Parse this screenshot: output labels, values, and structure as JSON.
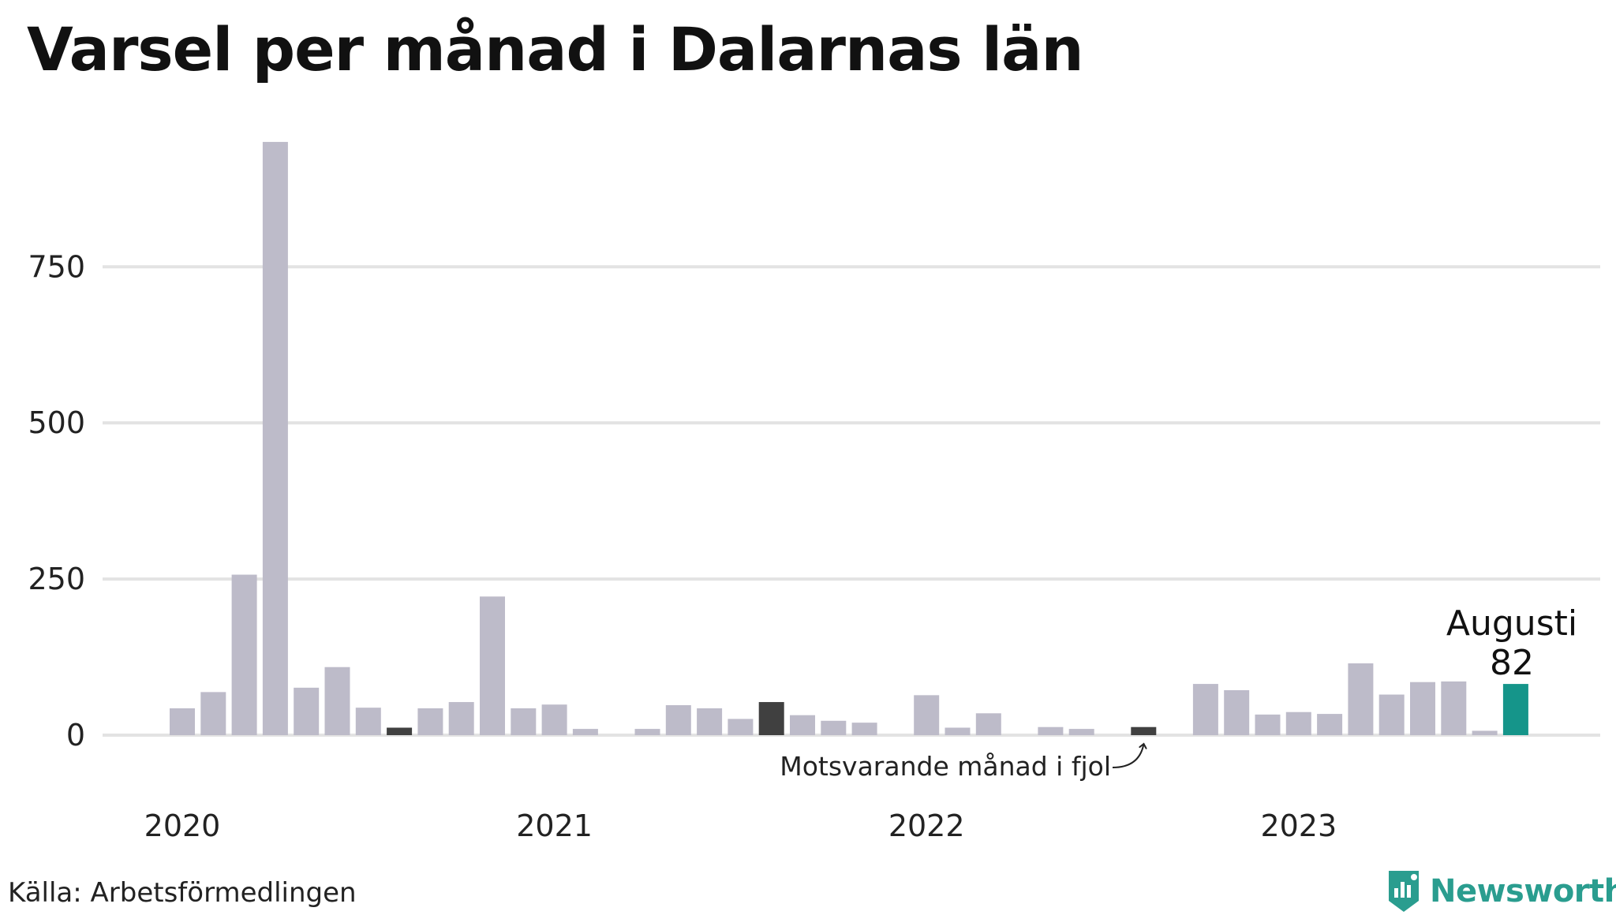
{
  "title": "Varsel per månad i Dalarnas län",
  "source": "Källa: Arbetsförmedlingen",
  "brand": {
    "name": "Newsworthy",
    "icon": "newsworthy-logo-icon",
    "color": "#2a9d8f"
  },
  "colors": {
    "bar": "#bdbbc9",
    "previous_year": "#404040",
    "current": "#15958a",
    "grid": "#e3e3e3"
  },
  "chart_data": {
    "type": "bar",
    "title": "Varsel per månad i Dalarnas län",
    "ylim": [
      0,
      960
    ],
    "yticks": [
      0,
      250,
      500,
      750
    ],
    "grid": true,
    "x_tick_labels": [
      "2020",
      "2021",
      "2022",
      "2023"
    ],
    "x_tick_positions": [
      "2020-01",
      "2021-01",
      "2022-01",
      "2023-01"
    ],
    "categories": [
      "2020-01",
      "2020-02",
      "2020-03",
      "2020-04",
      "2020-05",
      "2020-06",
      "2020-07",
      "2020-08",
      "2020-09",
      "2020-10",
      "2020-11",
      "2020-12",
      "2021-01",
      "2021-02",
      "2021-03",
      "2021-04",
      "2021-05",
      "2021-06",
      "2021-07",
      "2021-08",
      "2021-09",
      "2021-10",
      "2021-11",
      "2021-12",
      "2022-01",
      "2022-02",
      "2022-03",
      "2022-04",
      "2022-05",
      "2022-06",
      "2022-07",
      "2022-08",
      "2022-09",
      "2022-10",
      "2022-11",
      "2022-12",
      "2023-01",
      "2023-02",
      "2023-03",
      "2023-04",
      "2023-05",
      "2023-06",
      "2023-07",
      "2023-08"
    ],
    "values": [
      43,
      69,
      257,
      950,
      76,
      109,
      44,
      12,
      43,
      53,
      222,
      43,
      49,
      10,
      0,
      10,
      48,
      43,
      26,
      53,
      32,
      23,
      20,
      0,
      64,
      12,
      35,
      0,
      13,
      10,
      0,
      13,
      0,
      82,
      72,
      33,
      37,
      34,
      115,
      65,
      85,
      86,
      7,
      82
    ],
    "highlight": {
      "current": {
        "category": "2023-08",
        "label": "Augusti",
        "value": 82
      },
      "previous_year": [
        "2020-08",
        "2021-08",
        "2022-08"
      ]
    },
    "annotation": {
      "text": "Motsvarande månad i fjol",
      "target": "2022-08"
    }
  }
}
